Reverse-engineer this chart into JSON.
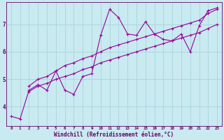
{
  "background_color": "#c8eaf0",
  "grid_color": "#aad4dc",
  "line_color": "#990099",
  "marker_color": "#990099",
  "xlabel": "Windchill (Refroidissement éolien,°C)",
  "xlabel_color": "#660066",
  "tick_color": "#660066",
  "xlim": [
    -0.5,
    23.5
  ],
  "ylim": [
    3.3,
    7.8
  ],
  "yticks": [
    4,
    5,
    6,
    7
  ],
  "xticks": [
    0,
    1,
    2,
    3,
    4,
    5,
    6,
    7,
    8,
    9,
    10,
    11,
    12,
    13,
    14,
    15,
    16,
    17,
    18,
    19,
    20,
    21,
    22,
    23
  ],
  "series": [
    {
      "x": [
        0,
        1,
        2,
        3,
        4,
        5,
        6,
        7,
        8,
        9,
        10,
        11,
        12,
        13,
        14,
        15,
        16,
        17,
        18,
        19,
        20,
        21,
        22,
        23
      ],
      "y": [
        3.65,
        3.55,
        4.6,
        4.8,
        4.6,
        5.3,
        4.6,
        4.45,
        5.1,
        5.2,
        6.6,
        7.55,
        7.25,
        6.65,
        6.6,
        7.1,
        6.65,
        6.45,
        6.4,
        6.65,
        6.0,
        6.95,
        7.5,
        7.6
      ]
    },
    {
      "x": [
        2,
        3,
        4,
        5,
        6,
        7,
        8,
        9,
        10,
        11,
        12,
        13,
        14,
        15,
        16,
        17,
        18,
        19,
        20,
        21,
        22,
        23
      ],
      "y": [
        4.75,
        5.0,
        5.1,
        5.3,
        5.5,
        5.6,
        5.75,
        5.85,
        6.0,
        6.15,
        6.25,
        6.35,
        6.45,
        6.55,
        6.65,
        6.75,
        6.85,
        6.95,
        7.05,
        7.15,
        7.4,
        7.55
      ]
    },
    {
      "x": [
        2,
        3,
        4,
        5,
        6,
        7,
        8,
        9,
        10,
        11,
        12,
        13,
        14,
        15,
        16,
        17,
        18,
        19,
        20,
        21,
        22,
        23
      ],
      "y": [
        4.55,
        4.75,
        4.85,
        5.0,
        5.1,
        5.2,
        5.35,
        5.45,
        5.6,
        5.7,
        5.8,
        5.9,
        6.0,
        6.1,
        6.2,
        6.3,
        6.4,
        6.5,
        6.6,
        6.7,
        6.85,
        7.0
      ]
    }
  ]
}
